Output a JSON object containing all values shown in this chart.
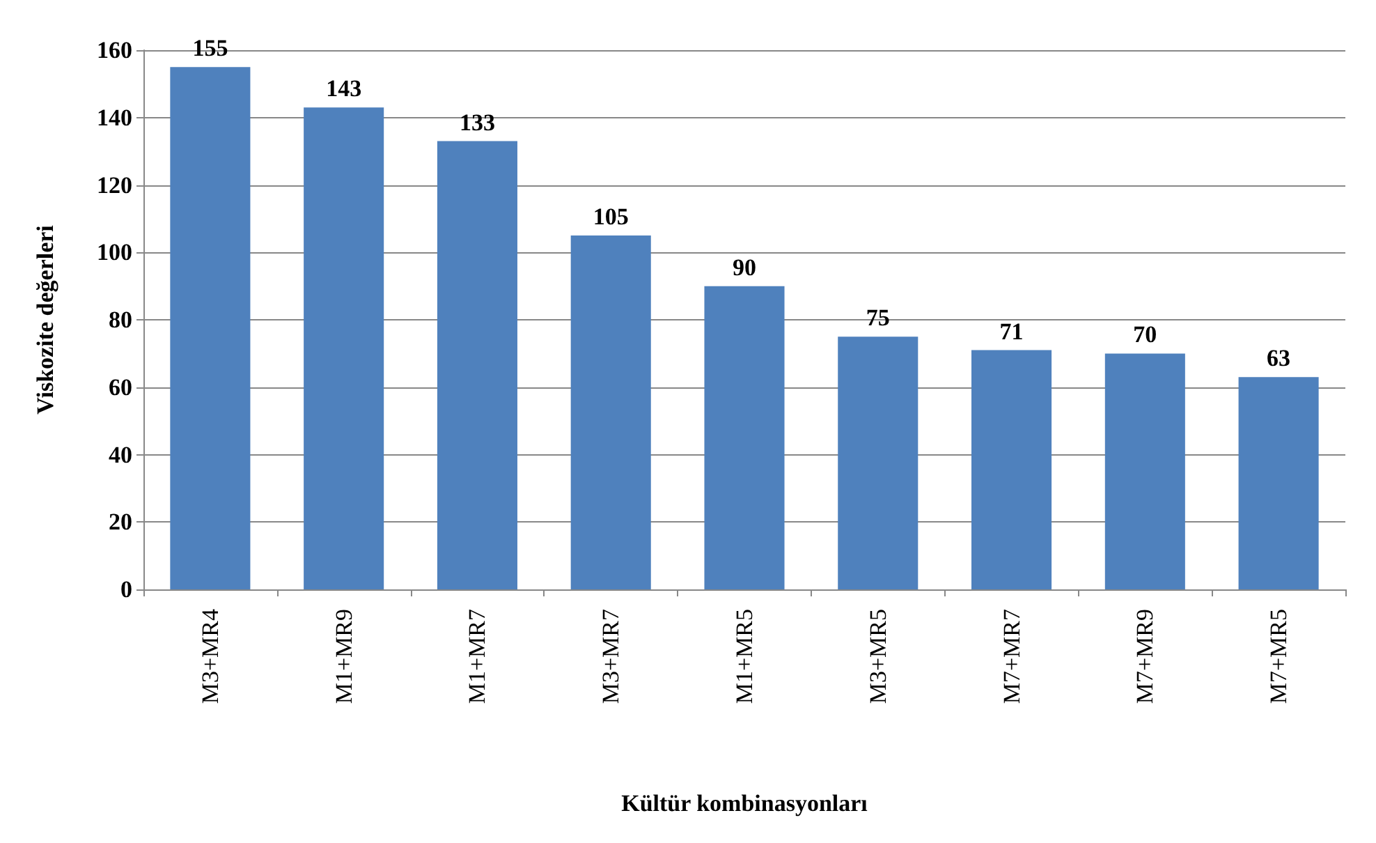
{
  "chart_data": {
    "type": "bar",
    "xlabel": "Kültür kombinasyonları",
    "ylabel": "Viskozite değerleri",
    "categories": [
      "M3+MR4",
      "M1+MR9",
      "M1+MR7",
      "M3+MR7",
      "M1+MR5",
      "M3+MR5",
      "M7+MR7",
      "M7+MR9",
      "M7+MR5"
    ],
    "values": [
      155,
      143,
      133,
      105,
      90,
      75,
      71,
      70,
      63
    ],
    "color": "#4f81bd",
    "ylim": [
      0,
      160
    ],
    "yticks": [
      0,
      20,
      40,
      60,
      80,
      100,
      120,
      140,
      160
    ],
    "grid": "y",
    "data_labels": true
  }
}
